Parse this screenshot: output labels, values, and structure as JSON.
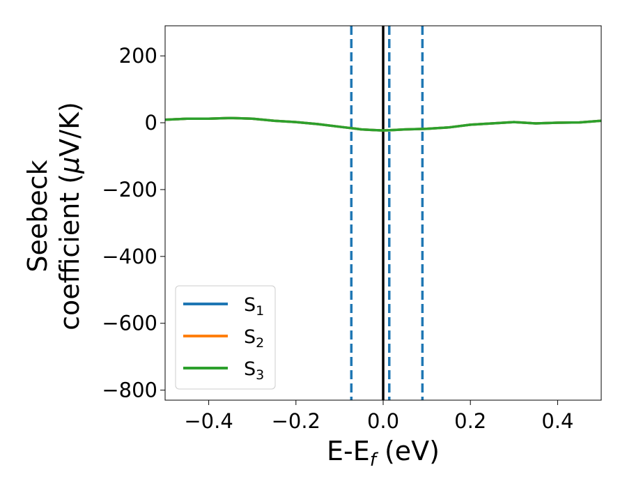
{
  "chart_data": {
    "type": "line",
    "title": "",
    "xlabel": "E-E",
    "xlabel_sub": "f",
    "xlabel_unit": " (eV)",
    "ylabel_line1": "Seebeck",
    "ylabel_line2": "coefficient  (",
    "ylabel_mu": "μ",
    "ylabel_unit": "V/K)",
    "xlim": [
      -0.5,
      0.5
    ],
    "ylim": [
      -830,
      290
    ],
    "xticks": [
      -0.4,
      -0.2,
      0.0,
      0.2,
      0.4
    ],
    "xtick_labels": [
      "−0.4",
      "−0.2",
      "0.0",
      "0.2",
      "0.4"
    ],
    "yticks": [
      200,
      0,
      -200,
      -400,
      -600,
      -800
    ],
    "ytick_labels": [
      "200",
      "0",
      "−200",
      "−400",
      "−600",
      "−800"
    ],
    "grid": false,
    "legend_position": "lower-left",
    "x": [
      -0.5,
      -0.45,
      -0.4,
      -0.35,
      -0.3,
      -0.25,
      -0.2,
      -0.15,
      -0.1,
      -0.075,
      -0.05,
      -0.02,
      0.0,
      0.02,
      0.05,
      0.1,
      0.15,
      0.2,
      0.25,
      0.3,
      0.35,
      0.4,
      0.45,
      0.5
    ],
    "series": [
      {
        "name_main": "S",
        "name_sub": "1",
        "color": "#1f77b4",
        "values": [
          9,
          12,
          12,
          14,
          12,
          6,
          2,
          -4,
          -12,
          -16,
          -20,
          -22,
          -23,
          -22,
          -20,
          -18,
          -14,
          -6,
          -2,
          2,
          -2,
          0,
          1,
          6
        ]
      },
      {
        "name_main": "S",
        "name_sub": "2",
        "color": "#ff7f0e",
        "values": [
          9,
          12,
          12,
          14,
          12,
          6,
          2,
          -4,
          -12,
          -16,
          -20,
          -22,
          -23,
          -22,
          -20,
          -18,
          -14,
          -6,
          -2,
          2,
          -2,
          0,
          1,
          6
        ]
      },
      {
        "name_main": "S",
        "name_sub": "3",
        "color": "#2ca02c",
        "values": [
          9,
          12,
          12,
          14,
          12,
          6,
          2,
          -4,
          -12,
          -16,
          -20,
          -22,
          -23,
          -22,
          -20,
          -18,
          -14,
          -6,
          -2,
          2,
          -2,
          0,
          1,
          6
        ]
      }
    ],
    "vlines": [
      {
        "x": 0.0,
        "color": "#000000",
        "style": "solid"
      },
      {
        "x": -0.073,
        "color": "#1f77b4",
        "style": "dashed"
      },
      {
        "x": 0.014,
        "color": "#1f77b4",
        "style": "dashed"
      },
      {
        "x": 0.09,
        "color": "#1f77b4",
        "style": "dashed"
      }
    ]
  }
}
